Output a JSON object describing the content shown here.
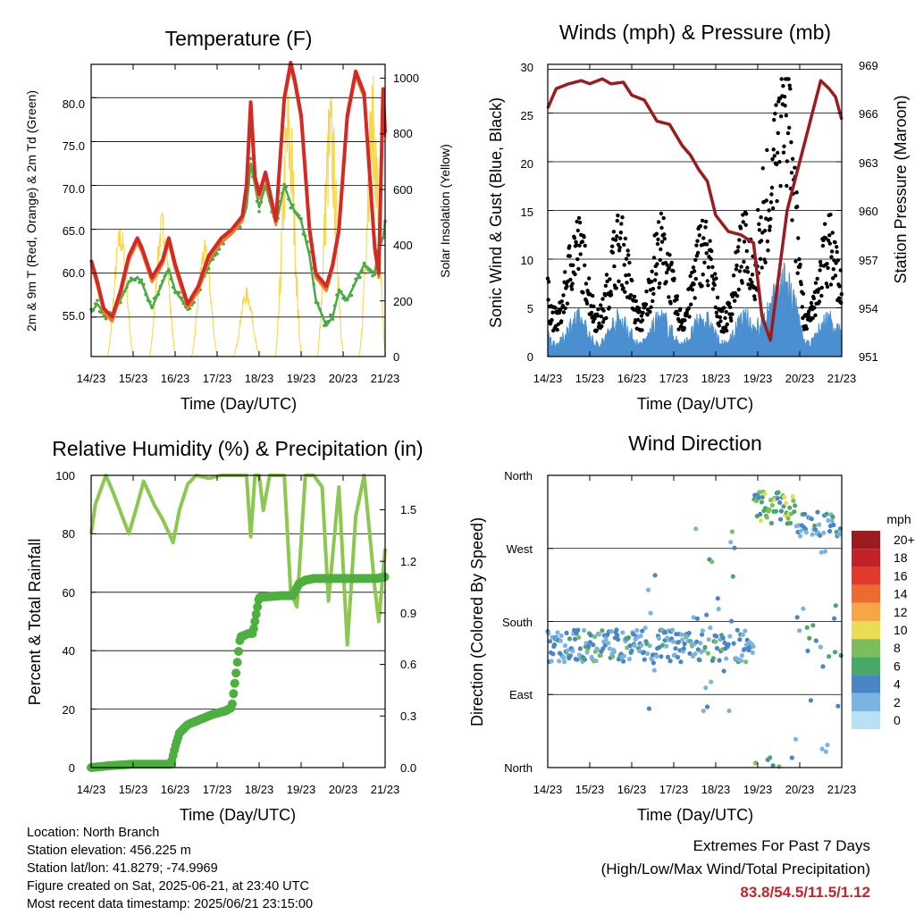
{
  "time_ticks": [
    "14/23",
    "15/23",
    "16/23",
    "17/23",
    "18/23",
    "19/23",
    "20/23",
    "21/23"
  ],
  "temperature_panel": {
    "title": "Temperature (F)",
    "ylabel_left": "2m & 9m T (Red, Orange) & 2m Td (Green)",
    "ylabel_right": "Solar Insolation (Yellow)",
    "xlabel": "Time (Day/UTC)",
    "left_ticks": [
      "55.0",
      "60.0",
      "65.0",
      "70.0",
      "75.0",
      "80.0"
    ],
    "right_ticks": [
      "0",
      "200",
      "400",
      "600",
      "800",
      "1000"
    ]
  },
  "winds_panel": {
    "title": "Winds (mph) & Pressure (mb)",
    "ylabel_left": "Sonic Wind & Gust (Blue, Black)",
    "ylabel_right": "Station Pressure (Maroon)",
    "xlabel": "Time (Day/UTC)",
    "left_ticks": [
      "0",
      "5",
      "10",
      "15",
      "20",
      "25",
      "30"
    ],
    "right_ticks": [
      "951",
      "954",
      "957",
      "960",
      "963",
      "966",
      "969"
    ]
  },
  "humidity_panel": {
    "title": "Relative Humidity (%) & Precipitation (in)",
    "ylabel_left": "Percent & Total Rainfall",
    "xlabel": "Time (Day/UTC)",
    "left_ticks": [
      "0",
      "20",
      "40",
      "60",
      "80",
      "100"
    ],
    "right_ticks": [
      "0.0",
      "0.3",
      "0.6",
      "0.9",
      "1.2",
      "1.5"
    ]
  },
  "direction_panel": {
    "title": "Wind Direction",
    "ylabel_left": "Direction (Colored By Speed)",
    "xlabel": "Time (Day/UTC)",
    "dir_ticks": [
      "North",
      "East",
      "South",
      "West",
      "North"
    ],
    "legend_title": "mph",
    "legend_labels": [
      "20+",
      "18",
      "16",
      "14",
      "12",
      "10",
      "8",
      "6",
      "4",
      "2",
      "0"
    ],
    "legend_colors": [
      "#9b1b1e",
      "#c22227",
      "#e03a2c",
      "#ee6a2f",
      "#f6a647",
      "#e8dd55",
      "#7cbd5e",
      "#4aa866",
      "#4a86c3",
      "#7bb4e2",
      "#b9e1f6"
    ]
  },
  "info": {
    "location": "Location: North Branch",
    "elevation": "Station elevation: 456.225 m",
    "latlon": "Station lat/lon: 41.8279; -74.9969",
    "created": "Figure created on Sat, 2025-06-21, at 23:40 UTC",
    "recent": "Most recent data timestamp: 2025/06/21 23:15:00"
  },
  "extremes": {
    "line1": "Extremes For Past 7 Days",
    "line2": "(High/Low/Max Wind/Total Precipitation)",
    "values": "83.8/54.5/11.5/1.12"
  },
  "colors": {
    "temp_2m": "#d32a26",
    "temp_9m": "#ee7a2a",
    "dewpoint": "#4aaa44",
    "solar": "#f8d84a",
    "wind": "#4a90d0",
    "gust": "#000000",
    "pressure": "#9b1b1e",
    "rh": "#8cc850",
    "precip": "#4caf3f"
  },
  "chart_data": [
    {
      "type": "line",
      "title": "Temperature (F)",
      "xlabel": "Time (Day/UTC)",
      "ylabel": "2m & 9m T (Red, Orange) & 2m Td (Green)",
      "y2label": "Solar Insolation (Yellow)",
      "xlim": [
        0,
        7
      ],
      "ylim": [
        50.5,
        83.8
      ],
      "y2lim": [
        0,
        1050
      ],
      "x": [
        0,
        0.15,
        0.3,
        0.5,
        0.7,
        0.9,
        1.1,
        1.2,
        1.45,
        1.7,
        1.85,
        2.0,
        2.3,
        2.55,
        2.8,
        3.1,
        3.35,
        3.6,
        3.7,
        3.8,
        3.9,
        4.0,
        4.15,
        4.4,
        4.6,
        4.75,
        4.85,
        5.0,
        5.2,
        5.35,
        5.6,
        5.75,
        5.9,
        6.1,
        6.3,
        6.5,
        6.75,
        6.85,
        6.95,
        7.0
      ],
      "series": [
        {
          "name": "2m T",
          "values": [
            61.5,
            59,
            56,
            55,
            58,
            62,
            64,
            63,
            59.5,
            61.5,
            64,
            61,
            56.5,
            58.5,
            62,
            64,
            65,
            66.5,
            70,
            79.5,
            71,
            69,
            71.5,
            66,
            80,
            84,
            82,
            78,
            65,
            60,
            58.5,
            61,
            65,
            78,
            83,
            80.5,
            63,
            60,
            81,
            76
          ]
        },
        {
          "name": "9m T",
          "values": [
            61,
            58.5,
            55.5,
            54.5,
            57.5,
            61.5,
            63.5,
            62.5,
            59,
            61,
            63.5,
            60.5,
            56,
            58,
            61.5,
            63.5,
            64.5,
            66,
            69.5,
            78,
            70.5,
            68.5,
            71,
            65.5,
            79.5,
            83.5,
            81.5,
            77.5,
            64.5,
            59.5,
            58,
            60.5,
            64.5,
            77.5,
            82.5,
            80,
            62.5,
            59.5,
            80,
            75.5
          ]
        },
        {
          "name": "2m Td",
          "values": [
            55.5,
            56.5,
            55.5,
            55,
            57,
            59,
            59.5,
            59,
            56,
            59,
            60.5,
            58,
            56,
            58,
            61,
            63.5,
            64.5,
            66,
            67.5,
            72.5,
            70,
            67.5,
            70,
            65.5,
            70,
            68,
            67,
            66,
            62,
            57,
            54,
            55,
            58,
            57,
            59,
            61,
            60,
            63,
            64,
            66
          ]
        }
      ],
      "solar": {
        "name": "Solar Insolation",
        "day_centers": [
          0.7,
          1.7,
          2.7,
          3.7,
          4.7,
          5.7,
          6.7
        ],
        "peaks": [
          480,
          530,
          420,
          250,
          1000,
          980,
          1020
        ]
      }
    },
    {
      "type": "scatter",
      "title": "Winds (mph) & Pressure (mb)",
      "xlabel": "Time (Day/UTC)",
      "ylabel": "Sonic Wind & Gust (Blue, Black)",
      "y2label": "Station Pressure (Maroon)",
      "xlim": [
        0,
        7
      ],
      "ylim": [
        0,
        30
      ],
      "y2lim": [
        951,
        969
      ],
      "series": [
        {
          "name": "Wind (Blue)",
          "description_level": "0-5 mph typical, peak ~11.5 on 19/23-20/23"
        },
        {
          "name": "Gust (Black)",
          "description_level": "3-14 mph typical, up to ~28 on day 19/23-20/23"
        },
        {
          "name": "Station Pressure (Maroon)",
          "x": [
            0,
            0.2,
            0.5,
            0.8,
            1.0,
            1.3,
            1.5,
            1.8,
            2.0,
            2.3,
            2.6,
            2.9,
            3.2,
            3.4,
            3.6,
            3.8,
            4.0,
            4.3,
            4.6,
            4.9,
            5.1,
            5.3,
            5.5,
            5.7,
            6.0,
            6.2,
            6.5,
            6.7,
            6.85,
            7.0
          ],
          "values": [
            966.3,
            967.5,
            967.8,
            968.0,
            967.8,
            968.1,
            967.8,
            967.9,
            967.1,
            966.8,
            965.5,
            965.3,
            964.0,
            963.4,
            962.5,
            961.8,
            959.7,
            958.7,
            958.5,
            958.0,
            953.5,
            952.0,
            956.0,
            960.0,
            963.0,
            965.0,
            968.0,
            967.5,
            967.0,
            965.6
          ]
        }
      ]
    },
    {
      "type": "line",
      "title": "Relative Humidity (%) & Precipitation (in)",
      "xlabel": "Time (Day/UTC)",
      "ylabel": "Percent & Total Rainfall",
      "xlim": [
        0,
        7
      ],
      "ylim": [
        0,
        100
      ],
      "y2lim": [
        0,
        1.7
      ],
      "series": [
        {
          "name": "Relative Humidity",
          "x": [
            0,
            0.1,
            0.35,
            0.5,
            0.9,
            1.1,
            1.25,
            1.5,
            1.7,
            1.95,
            2.1,
            2.3,
            2.5,
            2.8,
            3.1,
            3.4,
            3.7,
            3.8,
            3.9,
            4.0,
            4.1,
            4.25,
            4.45,
            4.6,
            4.75,
            4.9,
            5.1,
            5.3,
            5.5,
            5.65,
            5.9,
            6.1,
            6.3,
            6.5,
            6.75,
            6.85,
            7.0
          ],
          "values": [
            80,
            90,
            100,
            95,
            80,
            90,
            98,
            90,
            85,
            77,
            88,
            97,
            100,
            99,
            100,
            100,
            100,
            79,
            100,
            100,
            88,
            100,
            100,
            100,
            60,
            55,
            100,
            100,
            96,
            57,
            96,
            42,
            86,
            100,
            62,
            50,
            75
          ]
        },
        {
          "name": "Total Precipitation (in)",
          "x": [
            0,
            0.4,
            1.0,
            1.9,
            2.0,
            2.1,
            2.3,
            2.6,
            2.9,
            3.2,
            3.35,
            3.45,
            3.55,
            3.75,
            3.85,
            4.0,
            4.5,
            4.8,
            4.95,
            5.1,
            5.3,
            6.0,
            6.8,
            7.0
          ],
          "values": [
            0,
            0.01,
            0.02,
            0.02,
            0.12,
            0.2,
            0.25,
            0.28,
            0.31,
            0.33,
            0.35,
            0.55,
            0.76,
            0.78,
            0.78,
            0.99,
            1.0,
            1.0,
            1.07,
            1.09,
            1.1,
            1.1,
            1.1,
            1.11
          ]
        }
      ]
    },
    {
      "type": "scatter",
      "title": "Wind Direction",
      "xlabel": "Time (Day/UTC)",
      "ylabel": "Direction (Colored By Speed)",
      "xlim": [
        0,
        7
      ],
      "ylim": [
        0,
        360
      ],
      "y_ticks": [
        "North",
        "East",
        "South",
        "West",
        "North"
      ],
      "legend": {
        "title": "mph",
        "labels": [
          "20+",
          "18",
          "16",
          "14",
          "12",
          "10",
          "8",
          "6",
          "4",
          "2",
          "0"
        ]
      }
    }
  ]
}
